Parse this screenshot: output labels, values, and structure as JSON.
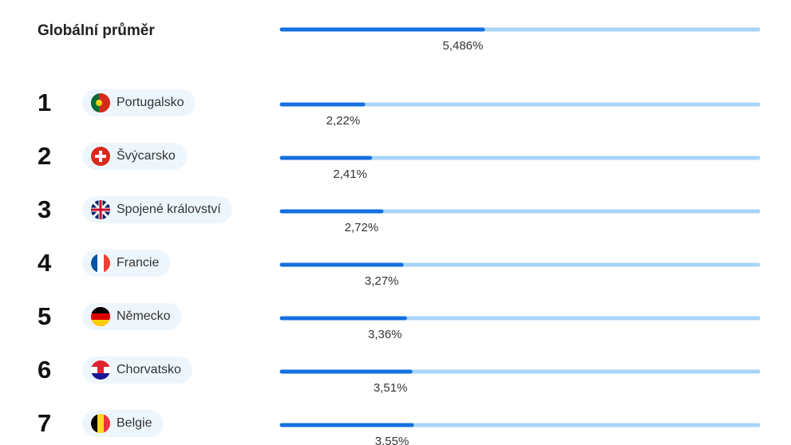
{
  "chart_data": {
    "type": "bar",
    "overall_label": "Globální průměr",
    "overall_value": 5.486,
    "overall_value_label": "5,486%",
    "ranks": [
      1,
      2,
      3,
      4,
      5,
      6,
      7
    ],
    "categories": [
      "Portugalsko",
      "Švýcarsko",
      "Spojené království",
      "Francie",
      "Německo",
      "Chorvatsko",
      "Belgie"
    ],
    "values": [
      2.22,
      2.41,
      2.72,
      3.27,
      3.36,
      3.51,
      3.55
    ],
    "value_labels": [
      "2,22%",
      "2,41%",
      "2,72%",
      "3,27%",
      "3,36%",
      "3,51%",
      "3,55%"
    ],
    "xlim": [
      0,
      13
    ],
    "color": "#1570e0",
    "track_color": "#a8d5f7"
  }
}
